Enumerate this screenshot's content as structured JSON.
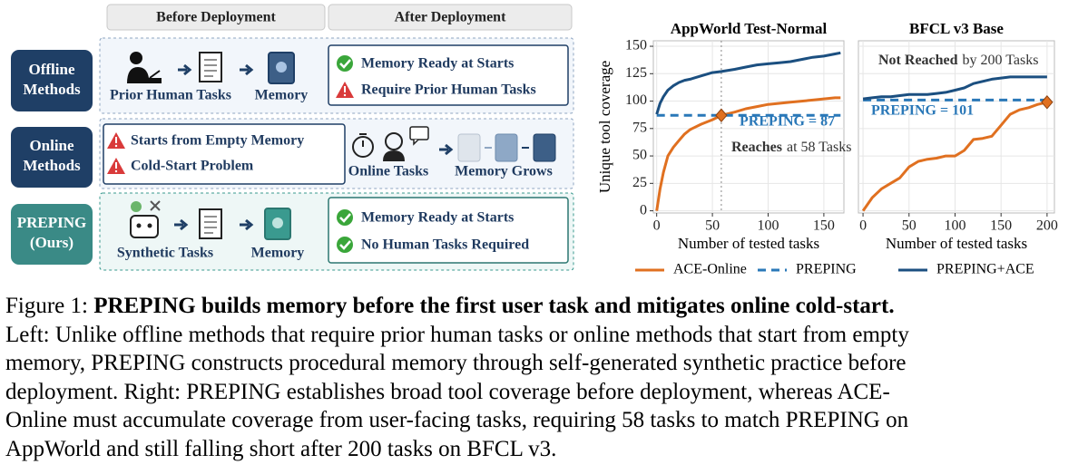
{
  "diagram": {
    "headers": [
      "Before Deployment",
      "After Deployment"
    ],
    "rows": [
      {
        "label": [
          "Offline",
          "Methods"
        ],
        "before": [
          "Prior Human Tasks",
          "Memory"
        ],
        "after": [
          "Memory Ready at Starts",
          "Require Prior Human Tasks"
        ]
      },
      {
        "label": [
          "Online",
          "Methods"
        ],
        "before": [
          "Starts from Empty Memory",
          "Cold-Start Problem"
        ],
        "after": [
          "Online Tasks",
          "Memory Grows"
        ]
      },
      {
        "label": [
          "PREPING",
          "(Ours)"
        ],
        "before": [
          "Synthetic Tasks",
          "Memory"
        ],
        "after": [
          "Memory Ready at Starts",
          "No Human Tasks Required"
        ]
      }
    ]
  },
  "chart_data": [
    {
      "type": "line",
      "title": "AppWorld Test-Normal",
      "xlabel": "Number of tested tasks",
      "ylabel": "Unique tool coverage",
      "x": [
        0,
        3,
        6,
        10,
        15,
        20,
        25,
        30,
        40,
        50,
        58,
        70,
        80,
        90,
        100,
        110,
        120,
        130,
        140,
        150,
        160,
        165
      ],
      "series": [
        {
          "name": "ACE-Online",
          "color": "#e07020",
          "values": [
            0,
            20,
            35,
            50,
            58,
            64,
            70,
            74,
            79,
            83,
            87,
            90,
            93,
            95,
            97,
            98,
            99,
            100,
            101,
            102,
            103,
            103
          ]
        },
        {
          "name": "PREPING",
          "color": "#2a78b8",
          "dash": true,
          "values": [
            87,
            87,
            87,
            87,
            87,
            87,
            87,
            87,
            87,
            87,
            87,
            87,
            87,
            87,
            87,
            87,
            87,
            87,
            87,
            87,
            87,
            87
          ]
        },
        {
          "name": "PREPING+ACE",
          "color": "#1b4f80",
          "values": [
            88,
            98,
            104,
            110,
            114,
            117,
            119,
            120,
            123,
            126,
            127,
            129,
            131,
            133,
            134,
            135,
            136,
            138,
            140,
            141,
            143,
            144
          ]
        }
      ],
      "highlight": {
        "x": 58,
        "y": 87
      },
      "annotations": [
        {
          "text": "PREPING = 87",
          "color": "#2a78b8"
        },
        {
          "strong": "Reaches",
          "text": "at 58 Tasks",
          "color": "#333333"
        }
      ],
      "xlim": [
        -3,
        168
      ],
      "xticks": [
        0,
        50,
        100,
        150
      ],
      "ylim": [
        -2,
        155
      ],
      "yticks": [
        0,
        25,
        50,
        75,
        100,
        125,
        150
      ],
      "grid": true
    },
    {
      "type": "line",
      "title": "BFCL v3 Base",
      "xlabel": "Number of tested tasks",
      "x": [
        0,
        10,
        20,
        30,
        40,
        50,
        60,
        70,
        80,
        90,
        100,
        110,
        120,
        130,
        140,
        150,
        160,
        170,
        180,
        190,
        200
      ],
      "series": [
        {
          "color": "#e07020",
          "values": [
            0,
            12,
            20,
            25,
            30,
            40,
            45,
            47,
            48,
            50,
            50,
            55,
            65,
            66,
            68,
            78,
            88,
            92,
            94,
            97,
            99
          ]
        },
        {
          "color": "#2a78b8",
          "dash": true,
          "values": [
            101,
            101,
            101,
            101,
            101,
            101,
            101,
            101,
            101,
            101,
            101,
            101,
            101,
            101,
            101,
            101,
            101,
            101,
            101,
            101,
            101
          ]
        },
        {
          "color": "#1b4f80",
          "values": [
            102,
            103,
            104,
            104,
            105,
            106,
            106,
            106,
            107,
            108,
            110,
            112,
            116,
            118,
            120,
            121,
            122,
            122,
            122,
            122,
            122
          ]
        }
      ],
      "highlight": {
        "x": 200,
        "y": 99
      },
      "annotations": [
        {
          "strong": "Not Reached",
          "text": "by 200 Tasks",
          "color": "#333333"
        },
        {
          "text": "PREPING = 101",
          "color": "#2a78b8"
        }
      ],
      "xlim": [
        -5,
        208
      ],
      "xticks": [
        0,
        50,
        100,
        150,
        200
      ],
      "grid": true
    }
  ],
  "caption": {
    "label": "Figure 1:",
    "title": "PREPING builds memory before the first user task and mitigates online cold-start.",
    "lines": [
      "Left: Unlike offline methods that require prior human tasks or online methods that start from empty",
      "memory, PREPING constructs procedural memory through self-generated synthetic practice before",
      "deployment. Right: PREPING establishes broad tool coverage before deployment, whereas ACE-",
      "Online must accumulate coverage from user-facing tasks, requiring 58 tasks to match PREPING on",
      "AppWorld and still falling short after 200 tasks on BFCL v3."
    ]
  }
}
